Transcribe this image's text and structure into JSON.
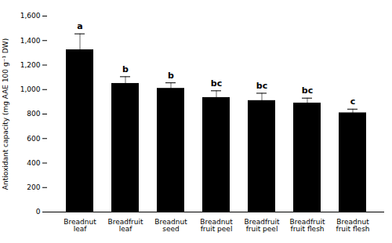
{
  "chart_data": {
    "type": "bar",
    "categories": [
      "Breadnut\nleaf",
      "Breadfruit\nleaf",
      "Breadnut\nseed",
      "Breadnut\nfruit peel",
      "Breadfruit\nfruit peel",
      "Breadfruit\nfruit flesh",
      "Breadnut\nfruit flesh"
    ],
    "values": [
      1325,
      1050,
      1010,
      935,
      910,
      890,
      810
    ],
    "errors": [
      130,
      55,
      45,
      55,
      60,
      40,
      30
    ],
    "letters": [
      "a",
      "b",
      "b",
      "bc",
      "bc",
      "bc",
      "c"
    ],
    "ylabel": "Antioxidant capacity (mg AAE 100 g⁻¹ DW)",
    "ylim": [
      0,
      1600
    ],
    "yticks": [
      0,
      200,
      400,
      600,
      800,
      1000,
      1200,
      1400,
      1600
    ],
    "grid": false
  }
}
